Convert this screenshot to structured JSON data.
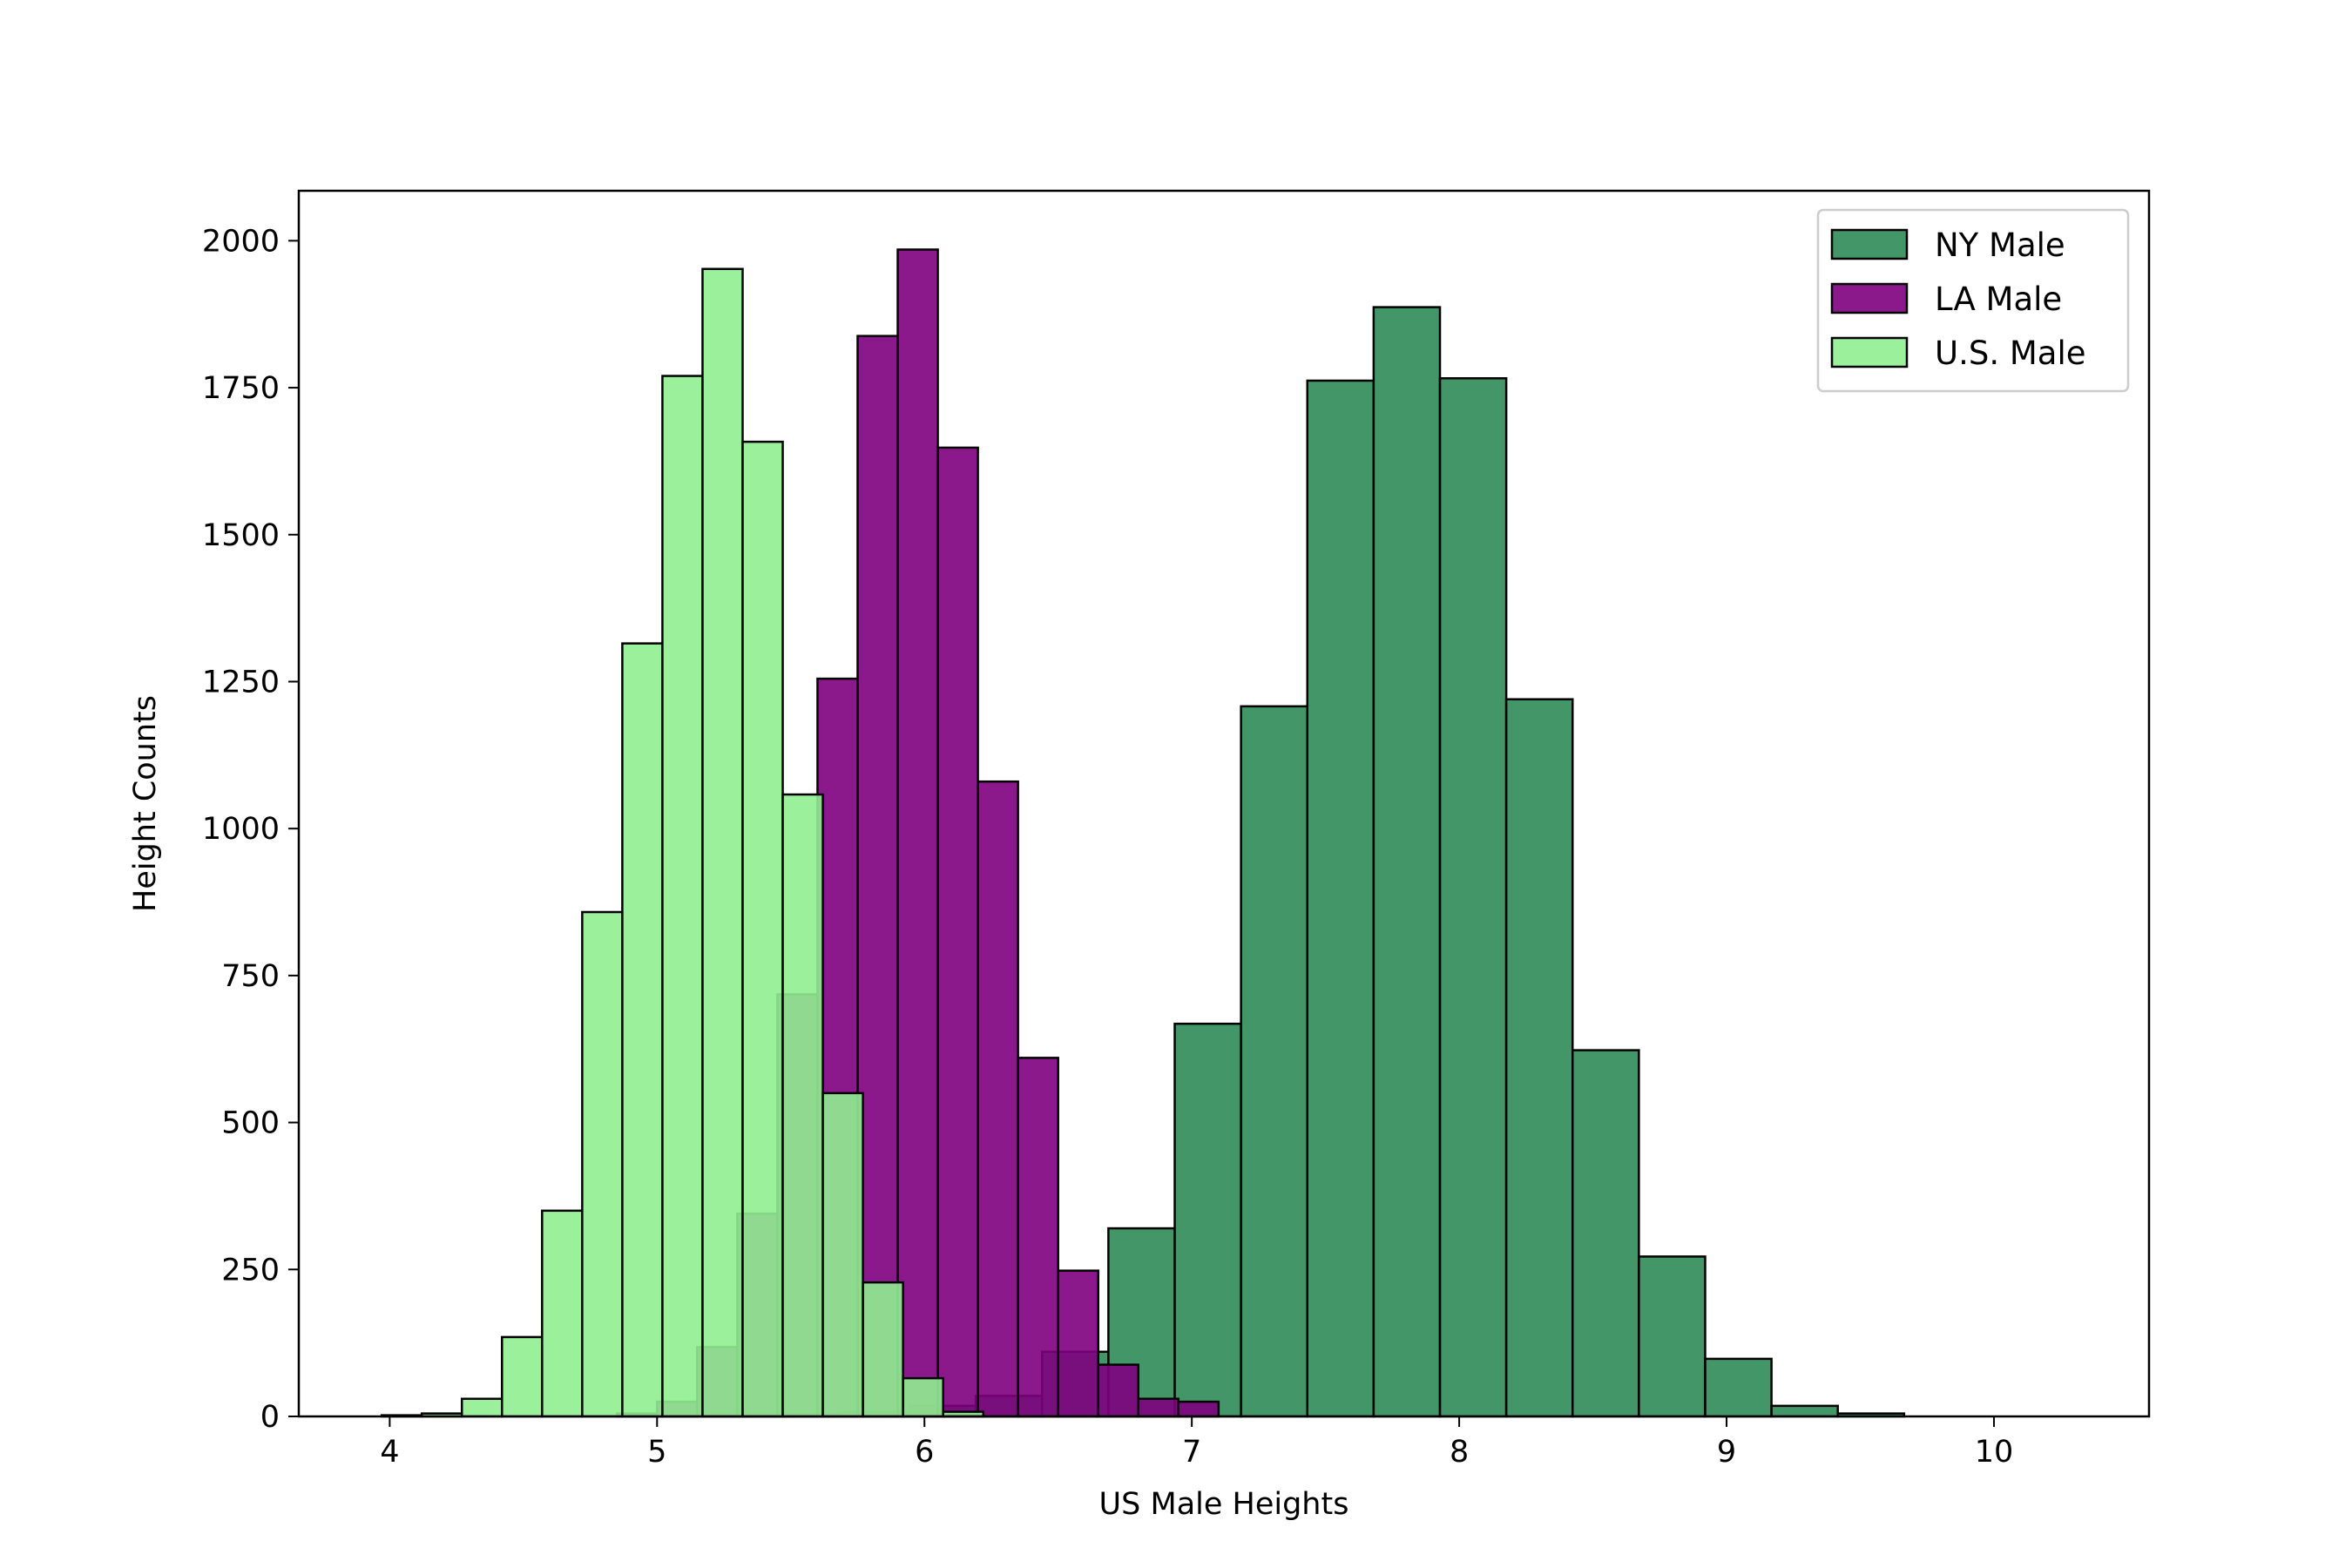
{
  "chart_data": {
    "type": "histogram",
    "title": "",
    "xlabel": "US Male Heights",
    "ylabel": "Height Counts",
    "xlim": [
      3.66,
      10.58
    ],
    "ylim": [
      0,
      2085
    ],
    "xticks": [
      4,
      5,
      6,
      7,
      8,
      9,
      10
    ],
    "yticks": [
      0,
      250,
      500,
      750,
      1000,
      1250,
      1500,
      1750,
      2000
    ],
    "grid": false,
    "legend_position": "top-right",
    "series": [
      {
        "name": "NY Male",
        "color": "#2e8b57",
        "edge_color": "#000000",
        "opacity": 0.9,
        "bin_start": 5.2,
        "bin_width": 0.248,
        "values": [
          2,
          4,
          8,
          18,
          35,
          110,
          320,
          668,
          1208,
          1762,
          1887,
          1766,
          1220,
          623,
          272,
          98,
          18,
          5
        ]
      },
      {
        "name": "LA Male",
        "color": "#800080",
        "edge_color": "#000000",
        "opacity": 0.9,
        "bin_start": 4.85,
        "bin_width": 0.15,
        "values": [
          5,
          25,
          118,
          345,
          718,
          1255,
          1838,
          1985,
          1648,
          1080,
          610,
          248,
          88,
          30,
          25
        ]
      },
      {
        "name": "U.S. Male",
        "color": "#90ee90",
        "edge_color": "#000000",
        "opacity": 0.9,
        "bin_start": 3.97,
        "bin_width": 0.15,
        "values": [
          2,
          5,
          30,
          135,
          350,
          858,
          1315,
          1770,
          1952,
          1658,
          1058,
          550,
          228,
          65,
          8
        ]
      }
    ]
  }
}
